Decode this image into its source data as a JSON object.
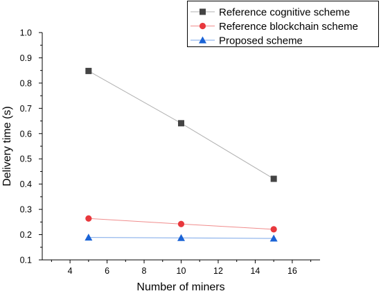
{
  "chart_data": {
    "type": "line",
    "title": "",
    "xlabel": "Number of miners",
    "ylabel": "Delivery time (s)",
    "xlim": [
      2.5,
      17.5
    ],
    "ylim": [
      0.1,
      1.0
    ],
    "x_ticks": [
      4,
      6,
      8,
      10,
      12,
      14,
      16
    ],
    "y_ticks": [
      0.1,
      0.2,
      0.3,
      0.4,
      0.5,
      0.6,
      0.7,
      0.8,
      0.9,
      1.0
    ],
    "x_tick_labels": [
      "4",
      "6",
      "8",
      "10",
      "12",
      "14",
      "16"
    ],
    "y_tick_labels": [
      "0.1",
      "0.2",
      "0.3",
      "0.4",
      "0.5",
      "0.6",
      "0.7",
      "0.8",
      "0.9",
      "1.0"
    ],
    "grid": false,
    "legend_position": "top-right",
    "series": [
      {
        "name": "Reference cognitive scheme",
        "marker": "square",
        "color": "#444444",
        "line_color": "#b0b0b0",
        "x": [
          5,
          10,
          15
        ],
        "y": [
          0.848,
          0.641,
          0.421
        ]
      },
      {
        "name": "Reference blockchain scheme",
        "marker": "circle",
        "color": "#e8383d",
        "line_color": "#f08c8c",
        "x": [
          5,
          10,
          15
        ],
        "y": [
          0.264,
          0.242,
          0.221
        ]
      },
      {
        "name": "Proposed scheme",
        "marker": "triangle",
        "color": "#1a63d6",
        "line_color": "#7aa6e8",
        "x": [
          5,
          10,
          15
        ],
        "y": [
          0.189,
          0.187,
          0.185
        ]
      }
    ]
  }
}
